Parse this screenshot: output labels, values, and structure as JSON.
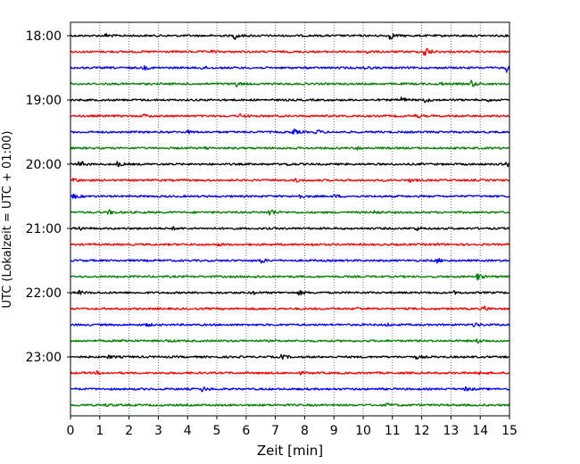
{
  "chart_data": {
    "type": "line",
    "title": "",
    "xlabel": "Zeit  [min]",
    "ylabel": "UTC (Lokalzeit = UTC + 01:00)",
    "xlim": [
      0,
      15
    ],
    "x_ticks": [
      0,
      1,
      2,
      3,
      4,
      5,
      6,
      7,
      8,
      9,
      10,
      11,
      12,
      13,
      14,
      15
    ],
    "x_tick_labels": [
      "0",
      "1",
      "2",
      "3",
      "4",
      "5",
      "6",
      "7",
      "8",
      "9",
      "10",
      "11",
      "12",
      "13",
      "14",
      "15"
    ],
    "y_tick_labels": [
      "18:00",
      "19:00",
      "20:00",
      "21:00",
      "22:00",
      "23:00"
    ],
    "vertical_grid": "dotted",
    "trace_interval_min": 15,
    "trace_colors": [
      "#000000",
      "#ff0000",
      "#0000ff",
      "#008000"
    ],
    "traces": [
      {
        "start": "18:00",
        "color": "#000000",
        "events": [
          [
            1.2,
            0.25
          ],
          [
            5.6,
            0.45
          ],
          [
            10.9,
            0.55
          ]
        ]
      },
      {
        "start": "18:15",
        "color": "#ff0000",
        "events": [
          [
            4.8,
            0.15
          ],
          [
            10.1,
            0.25
          ],
          [
            12.1,
            0.85
          ]
        ]
      },
      {
        "start": "18:30",
        "color": "#0000ff",
        "events": [
          [
            2.5,
            0.25
          ],
          [
            4.5,
            0.2
          ],
          [
            10.0,
            0.25
          ],
          [
            14.9,
            0.45
          ]
        ]
      },
      {
        "start": "18:45",
        "color": "#008000",
        "events": [
          [
            5.6,
            0.45
          ],
          [
            12.6,
            0.25
          ],
          [
            13.7,
            0.45
          ]
        ]
      },
      {
        "start": "19:00",
        "color": "#000000",
        "events": [
          [
            11.3,
            0.4
          ],
          [
            12.1,
            0.35
          ],
          [
            14.2,
            0.2
          ]
        ]
      },
      {
        "start": "19:15",
        "color": "#ff0000",
        "events": [
          [
            2.5,
            0.2
          ],
          [
            5.8,
            0.25
          ],
          [
            11.8,
            0.25
          ]
        ]
      },
      {
        "start": "19:30",
        "color": "#0000ff",
        "events": [
          [
            4.0,
            0.15
          ],
          [
            7.6,
            0.4
          ],
          [
            8.4,
            0.3
          ]
        ]
      },
      {
        "start": "19:45",
        "color": "#008000",
        "events": [
          [
            4.6,
            0.15
          ],
          [
            9.8,
            0.15
          ]
        ]
      },
      {
        "start": "20:00",
        "color": "#000000",
        "events": [
          [
            0.3,
            0.5
          ],
          [
            1.6,
            0.3
          ],
          [
            7.4,
            0.2
          ],
          [
            14.9,
            0.3
          ]
        ]
      },
      {
        "start": "20:15",
        "color": "#ff0000",
        "events": [
          [
            0.1,
            0.35
          ],
          [
            7.7,
            0.2
          ],
          [
            11.6,
            0.2
          ]
        ]
      },
      {
        "start": "20:30",
        "color": "#0000ff",
        "events": [
          [
            0.1,
            0.3
          ],
          [
            7.8,
            0.3
          ],
          [
            9.0,
            0.2
          ]
        ]
      },
      {
        "start": "20:45",
        "color": "#008000",
        "events": [
          [
            1.3,
            0.3
          ],
          [
            6.8,
            0.6
          ],
          [
            10.4,
            0.25
          ]
        ]
      },
      {
        "start": "21:00",
        "color": "#000000",
        "events": [
          [
            0.3,
            0.2
          ],
          [
            3.5,
            0.15
          ],
          [
            11.8,
            0.25
          ]
        ]
      },
      {
        "start": "21:15",
        "color": "#ff0000",
        "events": [
          [
            5.0,
            0.15
          ],
          [
            8.2,
            0.15
          ],
          [
            12.5,
            0.15
          ]
        ]
      },
      {
        "start": "21:30",
        "color": "#0000ff",
        "events": [
          [
            6.5,
            0.35
          ],
          [
            12.5,
            0.35
          ]
        ]
      },
      {
        "start": "21:45",
        "color": "#008000",
        "events": [
          [
            6.3,
            0.15
          ],
          [
            13.9,
            0.45
          ]
        ]
      },
      {
        "start": "22:00",
        "color": "#000000",
        "events": [
          [
            0.3,
            0.2
          ],
          [
            6.2,
            0.25
          ],
          [
            7.8,
            0.3
          ],
          [
            13.1,
            0.15
          ]
        ]
      },
      {
        "start": "22:15",
        "color": "#ff0000",
        "events": [
          [
            9.8,
            0.15
          ],
          [
            14.1,
            0.35
          ]
        ]
      },
      {
        "start": "22:30",
        "color": "#0000ff",
        "events": [
          [
            2.6,
            0.15
          ],
          [
            10.8,
            0.15
          ],
          [
            13.8,
            0.3
          ]
        ]
      },
      {
        "start": "22:45",
        "color": "#008000",
        "events": [
          [
            1.8,
            0.2
          ],
          [
            3.3,
            0.15
          ],
          [
            13.9,
            0.3
          ]
        ]
      },
      {
        "start": "23:00",
        "color": "#000000",
        "events": [
          [
            1.3,
            0.2
          ],
          [
            7.2,
            0.3
          ],
          [
            11.8,
            0.2
          ]
        ]
      },
      {
        "start": "23:15",
        "color": "#ff0000",
        "events": [
          [
            0.9,
            0.15
          ],
          [
            7.8,
            0.15
          ],
          [
            14.0,
            0.2
          ]
        ]
      },
      {
        "start": "23:30",
        "color": "#0000ff",
        "events": [
          [
            4.5,
            0.3
          ],
          [
            13.5,
            0.25
          ]
        ]
      },
      {
        "start": "23:45",
        "color": "#008000",
        "events": [
          [
            1.2,
            0.15
          ],
          [
            10.8,
            0.25
          ]
        ]
      }
    ]
  }
}
